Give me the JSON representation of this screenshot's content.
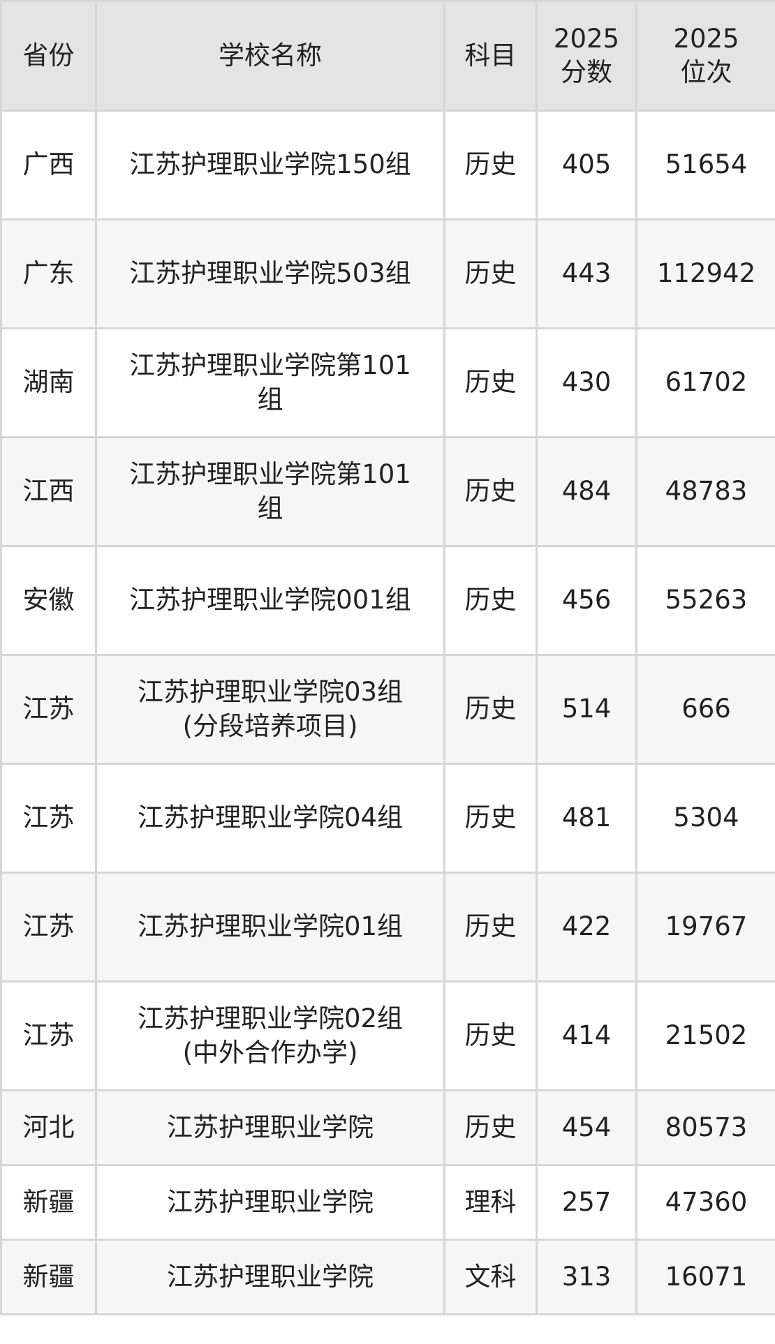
{
  "table": {
    "headers": [
      "省份",
      "学校名称",
      "科目",
      "2025\n分数",
      "2025\n位次"
    ],
    "header_lines": [
      [
        "省份"
      ],
      [
        "学校名称"
      ],
      [
        "科目"
      ],
      [
        "2025",
        "分数"
      ],
      [
        "2025",
        "位次"
      ]
    ],
    "rows": [
      {
        "province": "广西",
        "school": "江苏护理职业学院150组",
        "subject": "历史",
        "score": "405",
        "rank": "51654"
      },
      {
        "province": "广东",
        "school": "江苏护理职业学院503组",
        "subject": "历史",
        "score": "443",
        "rank": "112942"
      },
      {
        "province": "湖南",
        "school": "江苏护理职业学院第101组",
        "subject": "历史",
        "score": "430",
        "rank": "61702"
      },
      {
        "province": "江西",
        "school": "江苏护理职业学院第101组",
        "subject": "历史",
        "score": "484",
        "rank": "48783"
      },
      {
        "province": "安徽",
        "school": "江苏护理职业学院001组",
        "subject": "历史",
        "score": "456",
        "rank": "55263"
      },
      {
        "province": "江苏",
        "school": "江苏护理职业学院03组(分段培养项目)",
        "subject": "历史",
        "score": "514",
        "rank": "666"
      },
      {
        "province": "江苏",
        "school": "江苏护理职业学院04组",
        "subject": "历史",
        "score": "481",
        "rank": "5304"
      },
      {
        "province": "江苏",
        "school": "江苏护理职业学院01组",
        "subject": "历史",
        "score": "422",
        "rank": "19767"
      },
      {
        "province": "江苏",
        "school": "江苏护理职业学院02组(中外合作办学)",
        "subject": "历史",
        "score": "414",
        "rank": "21502"
      },
      {
        "province": "河北",
        "school": "江苏护理职业学院",
        "subject": "历史",
        "score": "454",
        "rank": "80573"
      },
      {
        "province": "新疆",
        "school": "江苏护理职业学院",
        "subject": "理科",
        "score": "257",
        "rank": "47360"
      },
      {
        "province": "新疆",
        "school": "江苏护理职业学院",
        "subject": "文科",
        "score": "313",
        "rank": "16071"
      }
    ]
  },
  "colors": {
    "header_bg": "#e4e4e4",
    "row_alt_bg": "#f6f6f6",
    "border": "#d6d6d6",
    "text": "#222222"
  }
}
